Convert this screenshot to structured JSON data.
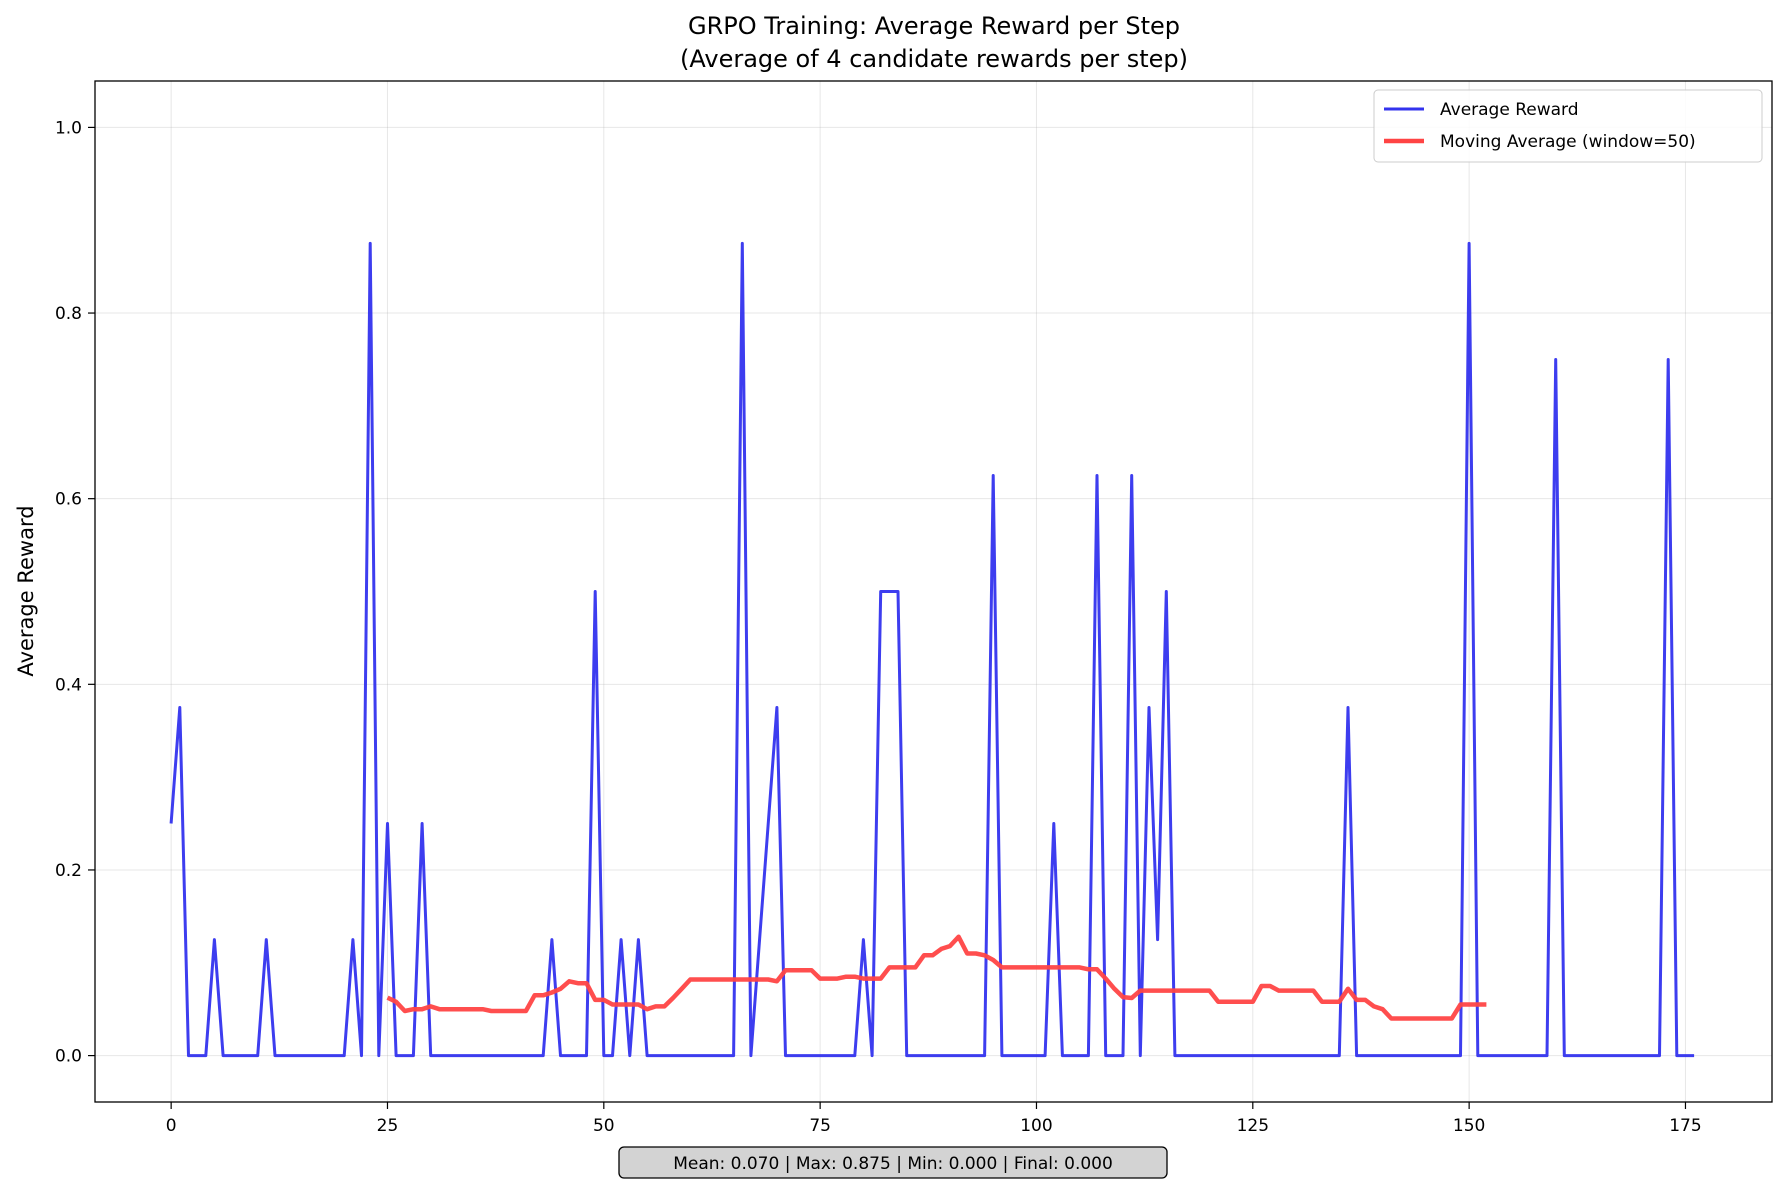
{
  "chart_data": {
    "type": "line",
    "title": "GRPO Training: Average Reward per Step",
    "subtitle": "(Average of 4 candidate rewards per step)",
    "xlabel": "",
    "ylabel": "Average Reward",
    "xlim": [
      -8.8,
      185
    ],
    "ylim": [
      -0.05,
      1.05
    ],
    "xticks": [
      0,
      25,
      50,
      75,
      100,
      125,
      150,
      175
    ],
    "yticks": [
      0.0,
      0.2,
      0.4,
      0.6,
      0.8,
      1.0
    ],
    "xtick_labels": [
      "0",
      "25",
      "50",
      "75",
      "100",
      "125",
      "150",
      "175"
    ],
    "ytick_labels": [
      "0.0",
      "0.2",
      "0.4",
      "0.6",
      "0.8",
      "1.0"
    ],
    "grid": true,
    "legend_position": "top-right",
    "stats_text": "Mean: 0.070 | Max: 0.875 | Min: 0.000 | Final: 0.000",
    "series": [
      {
        "name": "Average Reward",
        "color": "#3333ee",
        "points": [
          [
            0,
            0.25
          ],
          [
            1,
            0.375
          ],
          [
            2,
            0
          ],
          [
            3,
            0
          ],
          [
            4,
            0
          ],
          [
            5,
            0.125
          ],
          [
            6,
            0
          ],
          [
            7,
            0
          ],
          [
            8,
            0
          ],
          [
            9,
            0
          ],
          [
            10,
            0
          ],
          [
            11,
            0.125
          ],
          [
            12,
            0
          ],
          [
            13,
            0
          ],
          [
            14,
            0
          ],
          [
            15,
            0
          ],
          [
            16,
            0
          ],
          [
            17,
            0
          ],
          [
            18,
            0
          ],
          [
            19,
            0
          ],
          [
            20,
            0
          ],
          [
            21,
            0.125
          ],
          [
            22,
            0
          ],
          [
            23,
            0.875
          ],
          [
            24,
            0
          ],
          [
            25,
            0.25
          ],
          [
            26,
            0
          ],
          [
            27,
            0
          ],
          [
            28,
            0
          ],
          [
            29,
            0.25
          ],
          [
            30,
            0
          ],
          [
            31,
            0
          ],
          [
            32,
            0
          ],
          [
            33,
            0
          ],
          [
            34,
            0
          ],
          [
            35,
            0
          ],
          [
            36,
            0
          ],
          [
            37,
            0
          ],
          [
            38,
            0
          ],
          [
            39,
            0
          ],
          [
            40,
            0
          ],
          [
            41,
            0
          ],
          [
            42,
            0
          ],
          [
            43,
            0
          ],
          [
            44,
            0.125
          ],
          [
            45,
            0
          ],
          [
            46,
            0
          ],
          [
            47,
            0
          ],
          [
            48,
            0
          ],
          [
            49,
            0.5
          ],
          [
            50,
            0
          ],
          [
            51,
            0
          ],
          [
            52,
            0.125
          ],
          [
            53,
            0
          ],
          [
            54,
            0.125
          ],
          [
            55,
            0
          ],
          [
            56,
            0
          ],
          [
            57,
            0
          ],
          [
            58,
            0
          ],
          [
            59,
            0
          ],
          [
            60,
            0
          ],
          [
            61,
            0
          ],
          [
            62,
            0
          ],
          [
            63,
            0
          ],
          [
            64,
            0
          ],
          [
            65,
            0
          ],
          [
            66,
            0.875
          ],
          [
            67,
            0
          ],
          [
            70,
            0.375
          ],
          [
            71,
            0
          ],
          [
            72,
            0
          ],
          [
            73,
            0
          ],
          [
            74,
            0
          ],
          [
            75,
            0
          ],
          [
            76,
            0
          ],
          [
            77,
            0
          ],
          [
            78,
            0
          ],
          [
            79,
            0
          ],
          [
            80,
            0.125
          ],
          [
            81,
            0
          ],
          [
            82,
            0.5
          ],
          [
            83,
            0.5
          ],
          [
            84,
            0.5
          ],
          [
            85,
            0
          ],
          [
            86,
            0
          ],
          [
            87,
            0
          ],
          [
            88,
            0
          ],
          [
            89,
            0
          ],
          [
            90,
            0
          ],
          [
            91,
            0
          ],
          [
            92,
            0
          ],
          [
            93,
            0
          ],
          [
            94,
            0
          ],
          [
            95,
            0.625
          ],
          [
            96,
            0
          ],
          [
            97,
            0
          ],
          [
            98,
            0
          ],
          [
            99,
            0
          ],
          [
            100,
            0
          ],
          [
            101,
            0
          ],
          [
            102,
            0.25
          ],
          [
            103,
            0
          ],
          [
            104,
            0
          ],
          [
            105,
            0
          ],
          [
            106,
            0
          ],
          [
            107,
            0.625
          ],
          [
            108,
            0
          ],
          [
            109,
            0
          ],
          [
            110,
            0
          ],
          [
            111,
            0.625
          ],
          [
            112,
            0
          ],
          [
            113,
            0.375
          ],
          [
            114,
            0.125
          ],
          [
            115,
            0.5
          ],
          [
            116,
            0
          ],
          [
            117,
            0
          ],
          [
            118,
            0
          ],
          [
            119,
            0
          ],
          [
            120,
            0
          ],
          [
            121,
            0
          ],
          [
            122,
            0
          ],
          [
            123,
            0
          ],
          [
            124,
            0
          ],
          [
            125,
            0
          ],
          [
            126,
            0
          ],
          [
            127,
            0
          ],
          [
            128,
            0
          ],
          [
            129,
            0
          ],
          [
            130,
            0
          ],
          [
            131,
            0
          ],
          [
            132,
            0
          ],
          [
            133,
            0
          ],
          [
            134,
            0
          ],
          [
            135,
            0
          ],
          [
            136,
            0.375
          ],
          [
            137,
            0
          ],
          [
            138,
            0
          ],
          [
            139,
            0
          ],
          [
            140,
            0
          ],
          [
            141,
            0
          ],
          [
            142,
            0
          ],
          [
            143,
            0
          ],
          [
            144,
            0
          ],
          [
            145,
            0
          ],
          [
            146,
            0
          ],
          [
            147,
            0
          ],
          [
            148,
            0
          ],
          [
            149,
            0
          ],
          [
            150,
            0.875
          ],
          [
            151,
            0
          ],
          [
            152,
            0
          ],
          [
            153,
            0
          ],
          [
            154,
            0
          ],
          [
            155,
            0
          ],
          [
            156,
            0
          ],
          [
            157,
            0
          ],
          [
            158,
            0
          ],
          [
            159,
            0
          ],
          [
            160,
            0.75
          ],
          [
            161,
            0
          ],
          [
            162,
            0
          ],
          [
            163,
            0
          ],
          [
            164,
            0
          ],
          [
            165,
            0
          ],
          [
            166,
            0
          ],
          [
            167,
            0
          ],
          [
            168,
            0
          ],
          [
            169,
            0
          ],
          [
            170,
            0
          ],
          [
            171,
            0
          ],
          [
            172,
            0
          ],
          [
            173,
            0.75
          ],
          [
            174,
            0
          ],
          [
            175,
            0
          ],
          [
            176,
            0
          ]
        ]
      },
      {
        "name": "Moving Average (window=50)",
        "color": "#ff4444",
        "points": [
          [
            25,
            0.0625
          ],
          [
            26,
            0.058
          ],
          [
            27,
            0.048
          ],
          [
            28,
            0.05
          ],
          [
            29,
            0.05
          ],
          [
            30,
            0.053
          ],
          [
            31,
            0.05
          ],
          [
            32,
            0.05
          ],
          [
            33,
            0.05
          ],
          [
            34,
            0.05
          ],
          [
            35,
            0.05
          ],
          [
            36,
            0.05
          ],
          [
            37,
            0.048
          ],
          [
            38,
            0.048
          ],
          [
            39,
            0.048
          ],
          [
            40,
            0.048
          ],
          [
            41,
            0.048
          ],
          [
            42,
            0.065
          ],
          [
            43,
            0.065
          ],
          [
            44,
            0.068
          ],
          [
            45,
            0.072
          ],
          [
            46,
            0.08
          ],
          [
            47,
            0.078
          ],
          [
            48,
            0.078
          ],
          [
            49,
            0.06
          ],
          [
            50,
            0.06
          ],
          [
            51,
            0.055
          ],
          [
            52,
            0.055
          ],
          [
            53,
            0.055
          ],
          [
            54,
            0.055
          ],
          [
            55,
            0.05
          ],
          [
            56,
            0.053
          ],
          [
            57,
            0.053
          ],
          [
            58,
            0.062
          ],
          [
            59,
            0.072
          ],
          [
            60,
            0.082
          ],
          [
            61,
            0.082
          ],
          [
            62,
            0.082
          ],
          [
            63,
            0.082
          ],
          [
            64,
            0.082
          ],
          [
            65,
            0.082
          ],
          [
            66,
            0.082
          ],
          [
            67,
            0.082
          ],
          [
            68,
            0.082
          ],
          [
            69,
            0.082
          ],
          [
            70,
            0.08
          ],
          [
            71,
            0.092
          ],
          [
            72,
            0.092
          ],
          [
            73,
            0.092
          ],
          [
            74,
            0.092
          ],
          [
            75,
            0.083
          ],
          [
            76,
            0.083
          ],
          [
            77,
            0.083
          ],
          [
            78,
            0.085
          ],
          [
            79,
            0.085
          ],
          [
            80,
            0.083
          ],
          [
            81,
            0.083
          ],
          [
            82,
            0.083
          ],
          [
            83,
            0.095
          ],
          [
            84,
            0.095
          ],
          [
            85,
            0.095
          ],
          [
            86,
            0.095
          ],
          [
            87,
            0.108
          ],
          [
            88,
            0.108
          ],
          [
            89,
            0.115
          ],
          [
            90,
            0.118
          ],
          [
            91,
            0.128
          ],
          [
            92,
            0.11
          ],
          [
            93,
            0.11
          ],
          [
            94,
            0.108
          ],
          [
            95,
            0.103
          ],
          [
            96,
            0.095
          ],
          [
            97,
            0.095
          ],
          [
            98,
            0.095
          ],
          [
            99,
            0.095
          ],
          [
            100,
            0.095
          ],
          [
            101,
            0.095
          ],
          [
            102,
            0.095
          ],
          [
            103,
            0.095
          ],
          [
            104,
            0.095
          ],
          [
            105,
            0.095
          ],
          [
            106,
            0.093
          ],
          [
            107,
            0.093
          ],
          [
            108,
            0.083
          ],
          [
            109,
            0.072
          ],
          [
            110,
            0.063
          ],
          [
            111,
            0.062
          ],
          [
            112,
            0.07
          ],
          [
            113,
            0.07
          ],
          [
            114,
            0.07
          ],
          [
            115,
            0.07
          ],
          [
            116,
            0.07
          ],
          [
            117,
            0.07
          ],
          [
            118,
            0.07
          ],
          [
            119,
            0.07
          ],
          [
            120,
            0.07
          ],
          [
            121,
            0.058
          ],
          [
            122,
            0.058
          ],
          [
            123,
            0.058
          ],
          [
            124,
            0.058
          ],
          [
            125,
            0.058
          ],
          [
            126,
            0.075
          ],
          [
            127,
            0.075
          ],
          [
            128,
            0.07
          ],
          [
            129,
            0.07
          ],
          [
            130,
            0.07
          ],
          [
            131,
            0.07
          ],
          [
            132,
            0.07
          ],
          [
            133,
            0.058
          ],
          [
            134,
            0.058
          ],
          [
            135,
            0.058
          ],
          [
            136,
            0.072
          ],
          [
            137,
            0.06
          ],
          [
            138,
            0.06
          ],
          [
            139,
            0.053
          ],
          [
            140,
            0.05
          ],
          [
            141,
            0.04
          ],
          [
            142,
            0.04
          ],
          [
            143,
            0.04
          ],
          [
            144,
            0.04
          ],
          [
            145,
            0.04
          ],
          [
            146,
            0.04
          ],
          [
            147,
            0.04
          ],
          [
            148,
            0.04
          ],
          [
            149,
            0.055
          ],
          [
            150,
            0.055
          ],
          [
            151,
            0.055
          ],
          [
            152,
            0.055
          ]
        ]
      }
    ]
  }
}
